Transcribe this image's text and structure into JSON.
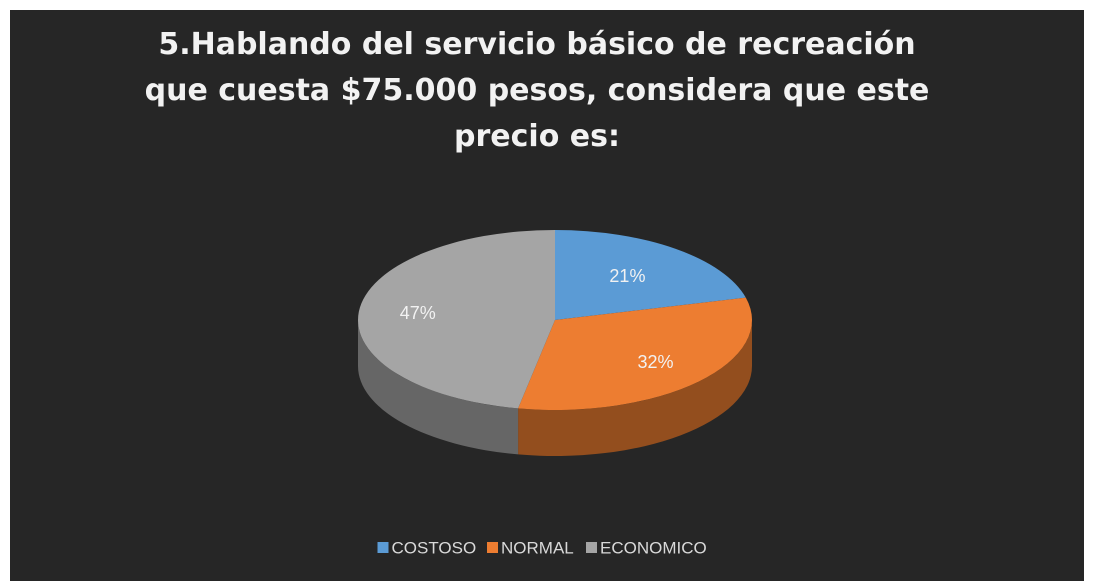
{
  "chart_data": {
    "type": "pie",
    "title": "5.Hablando del servicio básico de recreación que cuesta $75.000 pesos, considera que este precio es:",
    "categories": [
      "COSTOSO",
      "NORMAL",
      "ECONOMICO"
    ],
    "values": [
      21,
      32,
      47
    ],
    "value_labels": [
      "21%",
      "32%",
      "47%"
    ],
    "colors": [
      "#5b9bd5",
      "#ed7d31",
      "#a5a5a5"
    ],
    "legend": "bottom"
  }
}
